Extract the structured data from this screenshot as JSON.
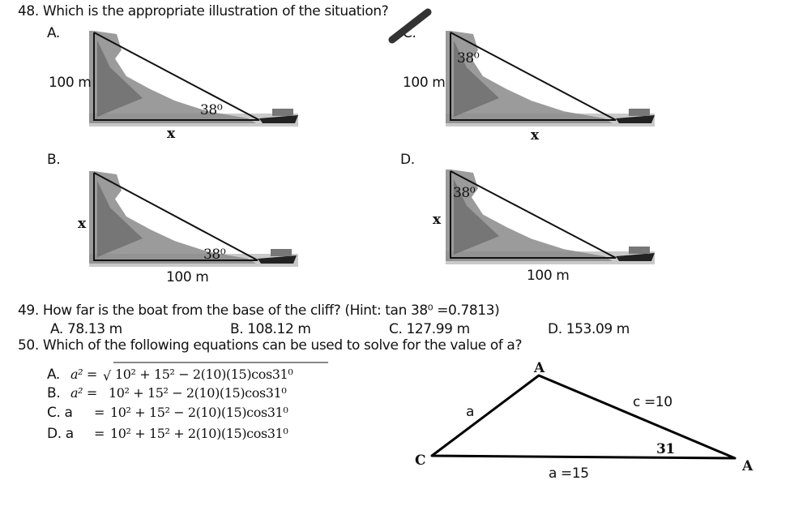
{
  "q48": {
    "question": "48. Which is the appropriate illustration of the situation?",
    "options": [
      {
        "letter": "A.",
        "side": "100 m",
        "angle": "38⁰",
        "base": "x"
      },
      {
        "letter": "C.",
        "angle": "38⁰",
        "side": "100 m",
        "base": "x"
      },
      {
        "letter": "B.",
        "side": "x",
        "angle": "38⁰",
        "base": "100 m"
      },
      {
        "letter": "D.",
        "angle": "38⁰",
        "side": "x",
        "base": "100 m"
      }
    ]
  },
  "q49": {
    "question": "49. How far is the boat from the base of the cliff? (Hint: tan 38⁰ =0.7813)",
    "options": [
      "A. 78.13 m",
      "B. 108.12 m",
      "C. 127.99 m",
      "D. 153.09 m"
    ]
  },
  "q50": {
    "question": "50. Which of the following equations can be used to solve for the value of a?",
    "options": [
      {
        "label": "A.",
        "lhs": "a² =",
        "radical": "√",
        "rhs": "10² + 15² − 2(10)(15)cos31⁰"
      },
      {
        "label": "B.",
        "lhs": "a² =",
        "rhs": "10² + 15² − 2(10)(15)cos31⁰"
      },
      {
        "label": "C. a",
        "lhs": "=",
        "rhs": "10² + 15² − 2(10)(15)cos31⁰"
      },
      {
        "label": "D. a",
        "lhs": "=",
        "rhs": "10² + 15² + 2(10)(15)cos31⁰"
      }
    ],
    "triangle": {
      "top": "A",
      "left": "C",
      "right": "A",
      "side_left": "a",
      "side_right": "c =10",
      "angle": "31",
      "base": "a =15"
    }
  }
}
